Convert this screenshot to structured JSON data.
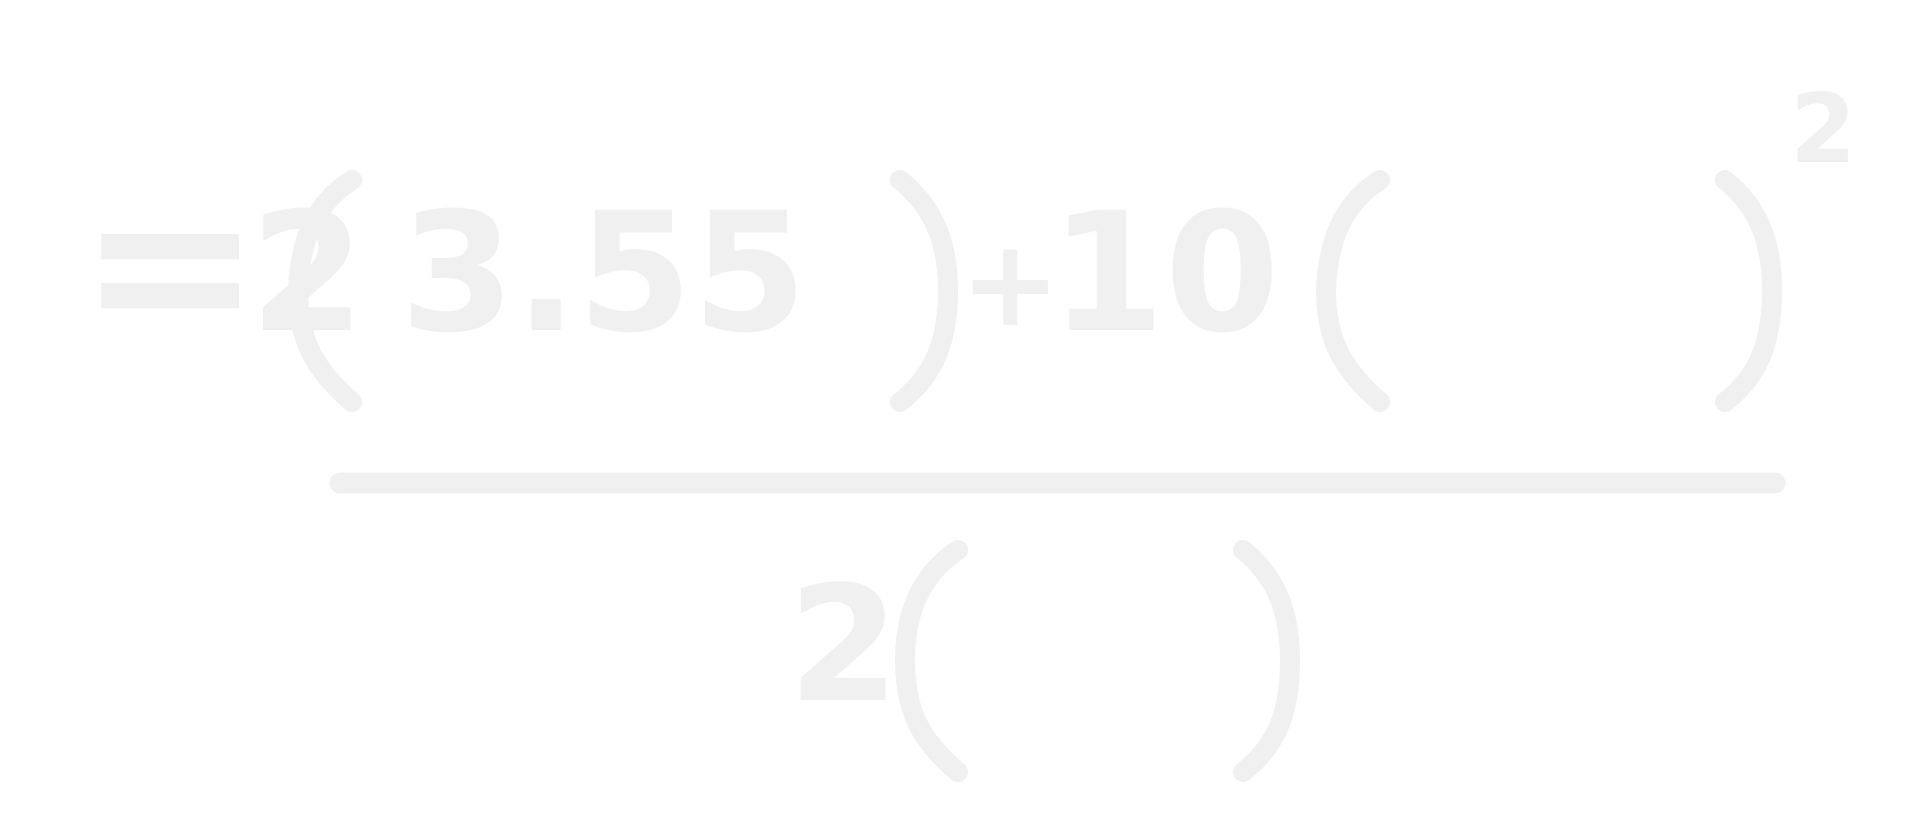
{
  "colors": {
    "background": "#ffffff",
    "ink": "#eff0ef"
  },
  "equation": {
    "equals": "=",
    "numerator": {
      "coef1": "2",
      "value": "3.55",
      "plus": "+",
      "coef2": "10",
      "exponent": "2"
    },
    "denominator": {
      "coef": "2"
    }
  }
}
